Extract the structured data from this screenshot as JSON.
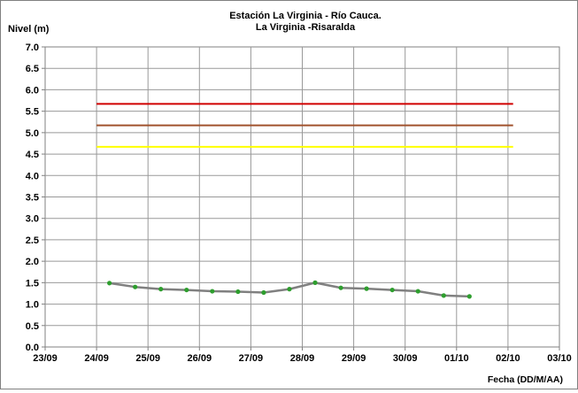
{
  "chart_data": {
    "type": "line",
    "title": "Estación La Virginia  - Río Cauca.",
    "subtitle": "La Virginia -Risaralda",
    "ylabel": "Nivel (m)",
    "xlabel": "Fecha (DD/M/AA)",
    "ylim": [
      0,
      7
    ],
    "yticks": [
      "0.0",
      "0.5",
      "1.0",
      "1.5",
      "2.0",
      "2.5",
      "3.0",
      "3.5",
      "4.0",
      "4.5",
      "5.0",
      "5.5",
      "6.0",
      "6.5",
      "7.0"
    ],
    "xlim": [
      "23/09",
      "03/10"
    ],
    "xticks": [
      "23/09",
      "24/09",
      "25/09",
      "26/09",
      "27/09",
      "28/09",
      "29/09",
      "30/09",
      "01/10",
      "02/10",
      "03/10"
    ],
    "grid": true,
    "thresholds": [
      {
        "value": 5.67,
        "from": 1.0,
        "to": 9.1,
        "color": "#d00000"
      },
      {
        "value": 5.17,
        "from": 1.0,
        "to": 9.1,
        "color": "#a0522d"
      },
      {
        "value": 4.67,
        "from": 1.0,
        "to": 9.1,
        "color": "#ffff00"
      }
    ],
    "series": [
      {
        "line_color": "#808080",
        "marker_color": "#2e9e2e",
        "points": [
          {
            "x": 1.25,
            "y": 1.49
          },
          {
            "x": 1.75,
            "y": 1.4
          },
          {
            "x": 2.25,
            "y": 1.35
          },
          {
            "x": 2.75,
            "y": 1.33
          },
          {
            "x": 3.25,
            "y": 1.3
          },
          {
            "x": 3.75,
            "y": 1.29
          },
          {
            "x": 4.25,
            "y": 1.27
          },
          {
            "x": 4.75,
            "y": 1.35
          },
          {
            "x": 5.25,
            "y": 1.5
          },
          {
            "x": 5.75,
            "y": 1.38
          },
          {
            "x": 6.25,
            "y": 1.36
          },
          {
            "x": 6.75,
            "y": 1.33
          },
          {
            "x": 7.25,
            "y": 1.3
          },
          {
            "x": 7.75,
            "y": 1.2
          },
          {
            "x": 8.25,
            "y": 1.18
          }
        ]
      }
    ]
  }
}
